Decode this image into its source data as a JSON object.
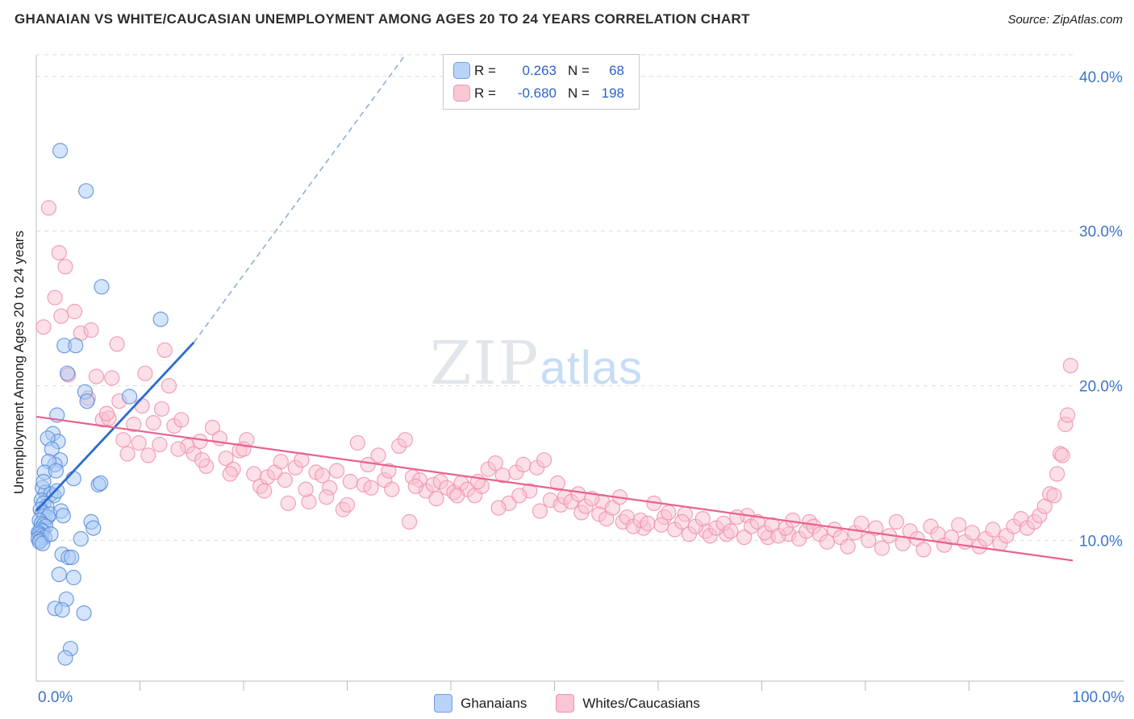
{
  "header": {
    "title": "GHANAIAN VS WHITE/CAUCASIAN UNEMPLOYMENT AMONG AGES 20 TO 24 YEARS CORRELATION CHART",
    "source": "Source: ZipAtlas.com"
  },
  "ylabel": "Unemployment Among Ages 20 to 24 years",
  "watermark": {
    "part1": "ZIP",
    "part2": "atlas"
  },
  "legend_box": {
    "series": [
      {
        "r_label": "R =",
        "r": "0.263",
        "n_label": "N =",
        "n": "68"
      },
      {
        "r_label": "R =",
        "r": "-0.680",
        "n_label": "N =",
        "n": "198"
      }
    ]
  },
  "bottom_legend": [
    {
      "label": "Ghanaians"
    },
    {
      "label": "Whites/Caucasians"
    }
  ],
  "axes": {
    "x_min_label": "0.0%",
    "x_max_label": "100.0%",
    "y_tick_labels": [
      "10.0%",
      "20.0%",
      "30.0%",
      "40.0%"
    ]
  },
  "colors": {
    "axis_label": "#3d74c9",
    "legend_number": "#2e62c9",
    "blue_fill": "#a9c9f6",
    "blue_stroke": "#5b8dd9",
    "pink_fill": "#f9c2d0",
    "pink_stroke": "#ef90ae",
    "blue_trend": "#2a6bcc",
    "blue_trend_dashed": "#8fafcf",
    "pink_trend": "#e8638c",
    "grid": "#dcdcdc",
    "axis_line": "#c9c9c9"
  },
  "chart_data": {
    "type": "scatter",
    "title": "GHANAIAN VS WHITE/CAUCASIAN UNEMPLOYMENT AMONG AGES 20 TO 24 YEARS CORRELATION CHART",
    "xlabel": "",
    "ylabel": "Unemployment Among Ages 20 to 24 years",
    "xlim": [
      0,
      100
    ],
    "ylim": [
      0.9,
      41.4
    ],
    "grid_y": [
      10,
      20,
      30,
      40
    ],
    "x_ticks": [
      10,
      20,
      30,
      40,
      50,
      60,
      70,
      80,
      90
    ],
    "legend_position": "bottom-center",
    "series": [
      {
        "name": "Ghanaians",
        "R": 0.263,
        "N": 68,
        "points": [
          [
            2.3,
            35.2
          ],
          [
            4.8,
            32.6
          ],
          [
            6.3,
            26.4
          ],
          [
            12.0,
            24.3
          ],
          [
            2.7,
            22.6
          ],
          [
            3.8,
            22.6
          ],
          [
            3.0,
            20.8
          ],
          [
            4.7,
            19.6
          ],
          [
            4.9,
            19.0
          ],
          [
            2.0,
            18.1
          ],
          [
            1.6,
            16.9
          ],
          [
            2.1,
            16.4
          ],
          [
            1.1,
            16.6
          ],
          [
            1.5,
            15.9
          ],
          [
            2.3,
            15.2
          ],
          [
            1.8,
            14.9
          ],
          [
            1.2,
            15.1
          ],
          [
            0.8,
            14.4
          ],
          [
            3.6,
            14.0
          ],
          [
            6.0,
            13.6
          ],
          [
            0.6,
            13.4
          ],
          [
            0.9,
            13.1
          ],
          [
            1.4,
            13.0
          ],
          [
            1.7,
            12.9
          ],
          [
            2.0,
            13.2
          ],
          [
            0.5,
            12.6
          ],
          [
            0.7,
            12.4
          ],
          [
            1.0,
            12.2
          ],
          [
            0.4,
            12.0
          ],
          [
            0.6,
            11.8
          ],
          [
            0.8,
            11.6
          ],
          [
            1.1,
            11.5
          ],
          [
            1.3,
            11.7
          ],
          [
            2.4,
            11.9
          ],
          [
            2.6,
            11.6
          ],
          [
            0.3,
            11.3
          ],
          [
            0.5,
            11.1
          ],
          [
            0.7,
            11.0
          ],
          [
            0.9,
            10.9
          ],
          [
            0.4,
            10.7
          ],
          [
            0.6,
            10.6
          ],
          [
            0.2,
            10.5
          ],
          [
            0.3,
            10.4
          ],
          [
            0.5,
            10.3
          ],
          [
            0.8,
            10.2
          ],
          [
            0.2,
            10.1
          ],
          [
            0.4,
            10.0
          ],
          [
            0.3,
            9.9
          ],
          [
            0.6,
            9.8
          ],
          [
            4.3,
            10.1
          ],
          [
            5.3,
            11.2
          ],
          [
            5.5,
            10.8
          ],
          [
            2.5,
            9.1
          ],
          [
            3.1,
            8.9
          ],
          [
            3.4,
            8.9
          ],
          [
            2.2,
            7.8
          ],
          [
            3.6,
            7.6
          ],
          [
            1.8,
            5.6
          ],
          [
            2.9,
            6.2
          ],
          [
            4.6,
            5.3
          ],
          [
            2.5,
            5.5
          ],
          [
            3.3,
            3.0
          ],
          [
            2.8,
            2.4
          ],
          [
            0.7,
            13.8
          ],
          [
            1.9,
            14.5
          ],
          [
            6.2,
            13.7
          ],
          [
            9.0,
            19.3
          ],
          [
            1.4,
            10.4
          ]
        ]
      },
      {
        "name": "Whites/Caucasians",
        "R": -0.68,
        "N": 198,
        "points": [
          [
            0.7,
            23.8
          ],
          [
            1.2,
            31.5
          ],
          [
            1.8,
            25.7
          ],
          [
            2.2,
            28.6
          ],
          [
            2.8,
            27.7
          ],
          [
            2.4,
            24.5
          ],
          [
            3.7,
            24.8
          ],
          [
            3.1,
            20.7
          ],
          [
            4.3,
            23.4
          ],
          [
            5.3,
            23.6
          ],
          [
            5.8,
            20.6
          ],
          [
            6.4,
            17.8
          ],
          [
            7.0,
            17.9
          ],
          [
            7.3,
            20.5
          ],
          [
            7.8,
            22.7
          ],
          [
            8.4,
            16.5
          ],
          [
            8.8,
            15.6
          ],
          [
            9.4,
            17.5
          ],
          [
            10.2,
            18.7
          ],
          [
            10.8,
            15.5
          ],
          [
            11.3,
            17.6
          ],
          [
            11.9,
            16.2
          ],
          [
            12.4,
            22.3
          ],
          [
            12.8,
            20.0
          ],
          [
            13.3,
            17.4
          ],
          [
            14.0,
            17.8
          ],
          [
            14.6,
            16.1
          ],
          [
            15.2,
            15.6
          ],
          [
            12.1,
            18.5
          ],
          [
            9.9,
            16.3
          ],
          [
            5.0,
            19.2
          ],
          [
            6.8,
            18.2
          ],
          [
            8.0,
            19.0
          ],
          [
            13.7,
            15.9
          ],
          [
            10.5,
            20.8
          ],
          [
            15.8,
            16.4
          ],
          [
            16.4,
            14.8
          ],
          [
            17.0,
            17.3
          ],
          [
            17.7,
            16.6
          ],
          [
            18.3,
            15.3
          ],
          [
            19.0,
            14.6
          ],
          [
            19.6,
            15.8
          ],
          [
            20.3,
            16.5
          ],
          [
            21.0,
            14.3
          ],
          [
            21.6,
            13.5
          ],
          [
            22.3,
            14.1
          ],
          [
            23.0,
            14.4
          ],
          [
            23.6,
            15.1
          ],
          [
            24.3,
            12.4
          ],
          [
            25.0,
            14.7
          ],
          [
            25.6,
            15.2
          ],
          [
            26.3,
            12.5
          ],
          [
            27.0,
            14.4
          ],
          [
            27.6,
            14.2
          ],
          [
            28.3,
            13.4
          ],
          [
            29.0,
            14.5
          ],
          [
            29.6,
            12.0
          ],
          [
            30.3,
            13.8
          ],
          [
            31.0,
            16.3
          ],
          [
            31.6,
            13.6
          ],
          [
            32.3,
            13.4
          ],
          [
            33.0,
            15.5
          ],
          [
            33.6,
            13.9
          ],
          [
            34.3,
            13.3
          ],
          [
            35.0,
            16.1
          ],
          [
            35.6,
            16.5
          ],
          [
            36.0,
            11.2
          ],
          [
            36.3,
            14.1
          ],
          [
            37.0,
            13.9
          ],
          [
            37.6,
            13.2
          ],
          [
            38.3,
            13.6
          ],
          [
            39.0,
            13.8
          ],
          [
            39.6,
            13.4
          ],
          [
            40.3,
            13.1
          ],
          [
            41.0,
            13.7
          ],
          [
            41.6,
            13.3
          ],
          [
            42.3,
            12.9
          ],
          [
            43.0,
            13.5
          ],
          [
            43.6,
            14.6
          ],
          [
            44.3,
            15.0
          ],
          [
            45.0,
            14.2
          ],
          [
            45.6,
            12.4
          ],
          [
            46.3,
            14.4
          ],
          [
            47.0,
            14.9
          ],
          [
            47.6,
            13.2
          ],
          [
            48.3,
            14.7
          ],
          [
            49.0,
            15.2
          ],
          [
            49.6,
            12.6
          ],
          [
            50.3,
            13.7
          ],
          [
            16.0,
            15.2
          ],
          [
            18.7,
            14.3
          ],
          [
            20.0,
            15.9
          ],
          [
            22.0,
            13.2
          ],
          [
            24.0,
            13.9
          ],
          [
            26.0,
            13.3
          ],
          [
            28.0,
            12.8
          ],
          [
            30.0,
            12.3
          ],
          [
            32.0,
            14.9
          ],
          [
            34.0,
            14.5
          ],
          [
            36.6,
            13.5
          ],
          [
            38.6,
            12.7
          ],
          [
            40.6,
            12.9
          ],
          [
            42.6,
            13.8
          ],
          [
            44.6,
            12.1
          ],
          [
            46.6,
            12.9
          ],
          [
            48.6,
            11.9
          ],
          [
            50.6,
            12.3
          ],
          [
            52.6,
            11.8
          ],
          [
            54.6,
            12.5
          ],
          [
            56.6,
            11.2
          ],
          [
            58.6,
            10.8
          ],
          [
            60.6,
            11.5
          ],
          [
            62.6,
            11.7
          ],
          [
            64.6,
            10.6
          ],
          [
            66.6,
            10.4
          ],
          [
            68.6,
            11.6
          ],
          [
            70.6,
            10.2
          ],
          [
            72.6,
            10.4
          ],
          [
            74.6,
            11.2
          ],
          [
            51.0,
            12.8
          ],
          [
            51.6,
            12.5
          ],
          [
            52.3,
            13.0
          ],
          [
            53.0,
            12.2
          ],
          [
            53.6,
            12.7
          ],
          [
            54.3,
            11.7
          ],
          [
            55.0,
            11.4
          ],
          [
            55.6,
            12.1
          ],
          [
            56.3,
            12.8
          ],
          [
            57.0,
            11.5
          ],
          [
            57.6,
            10.9
          ],
          [
            58.3,
            11.3
          ],
          [
            59.0,
            11.1
          ],
          [
            59.6,
            12.4
          ],
          [
            60.3,
            11.0
          ],
          [
            61.0,
            11.8
          ],
          [
            61.6,
            10.7
          ],
          [
            62.3,
            11.2
          ],
          [
            63.0,
            10.4
          ],
          [
            63.6,
            10.9
          ],
          [
            64.3,
            11.4
          ],
          [
            65.0,
            10.3
          ],
          [
            65.6,
            10.8
          ],
          [
            66.3,
            11.1
          ],
          [
            67.0,
            10.6
          ],
          [
            67.6,
            11.5
          ],
          [
            68.3,
            10.2
          ],
          [
            69.0,
            10.9
          ],
          [
            69.6,
            11.2
          ],
          [
            70.3,
            10.5
          ],
          [
            71.0,
            11.0
          ],
          [
            71.6,
            10.3
          ],
          [
            72.3,
            10.8
          ],
          [
            73.0,
            11.3
          ],
          [
            73.6,
            10.1
          ],
          [
            74.3,
            10.6
          ],
          [
            75.0,
            10.9
          ],
          [
            75.6,
            10.4
          ],
          [
            76.3,
            9.9
          ],
          [
            77.0,
            10.7
          ],
          [
            77.6,
            10.2
          ],
          [
            78.3,
            9.6
          ],
          [
            79.0,
            10.5
          ],
          [
            79.6,
            11.1
          ],
          [
            80.3,
            10.0
          ],
          [
            81.0,
            10.8
          ],
          [
            81.6,
            9.5
          ],
          [
            82.3,
            10.3
          ],
          [
            83.0,
            11.2
          ],
          [
            83.6,
            9.8
          ],
          [
            84.3,
            10.6
          ],
          [
            85.0,
            10.1
          ],
          [
            85.6,
            9.4
          ],
          [
            86.3,
            10.9
          ],
          [
            87.0,
            10.4
          ],
          [
            87.6,
            9.7
          ],
          [
            88.3,
            10.2
          ],
          [
            89.0,
            11.0
          ],
          [
            89.6,
            9.9
          ],
          [
            90.3,
            10.5
          ],
          [
            91.0,
            9.6
          ],
          [
            91.6,
            10.1
          ],
          [
            92.3,
            10.7
          ],
          [
            93.0,
            9.8
          ],
          [
            93.6,
            10.3
          ],
          [
            94.3,
            10.9
          ],
          [
            95.0,
            11.4
          ],
          [
            95.6,
            10.8
          ],
          [
            96.3,
            11.2
          ],
          [
            96.8,
            11.6
          ],
          [
            97.3,
            12.2
          ],
          [
            97.8,
            13.0
          ],
          [
            98.2,
            12.9
          ],
          [
            98.5,
            14.3
          ],
          [
            98.8,
            15.6
          ],
          [
            99.0,
            15.5
          ],
          [
            99.3,
            17.5
          ],
          [
            99.5,
            18.1
          ],
          [
            99.8,
            21.3
          ]
        ]
      }
    ],
    "trend_lines": [
      {
        "series": "Ghanaians",
        "x1": 0,
        "y1": 11.9,
        "x2": 15.2,
        "y2": 22.8,
        "style": "solid",
        "color_key": "blue_trend",
        "width": 2.8
      },
      {
        "series": "Ghanaians-extrapolated",
        "x1": 15.2,
        "y1": 22.8,
        "x2": 35.5,
        "y2": 41.3,
        "style": "dashed",
        "color_key": "blue_trend_dashed",
        "width": 1.6
      },
      {
        "series": "Whites/Caucasians",
        "x1": 0,
        "y1": 18.0,
        "x2": 100,
        "y2": 8.7,
        "style": "solid",
        "color_key": "pink_trend",
        "width": 2.2
      }
    ]
  }
}
